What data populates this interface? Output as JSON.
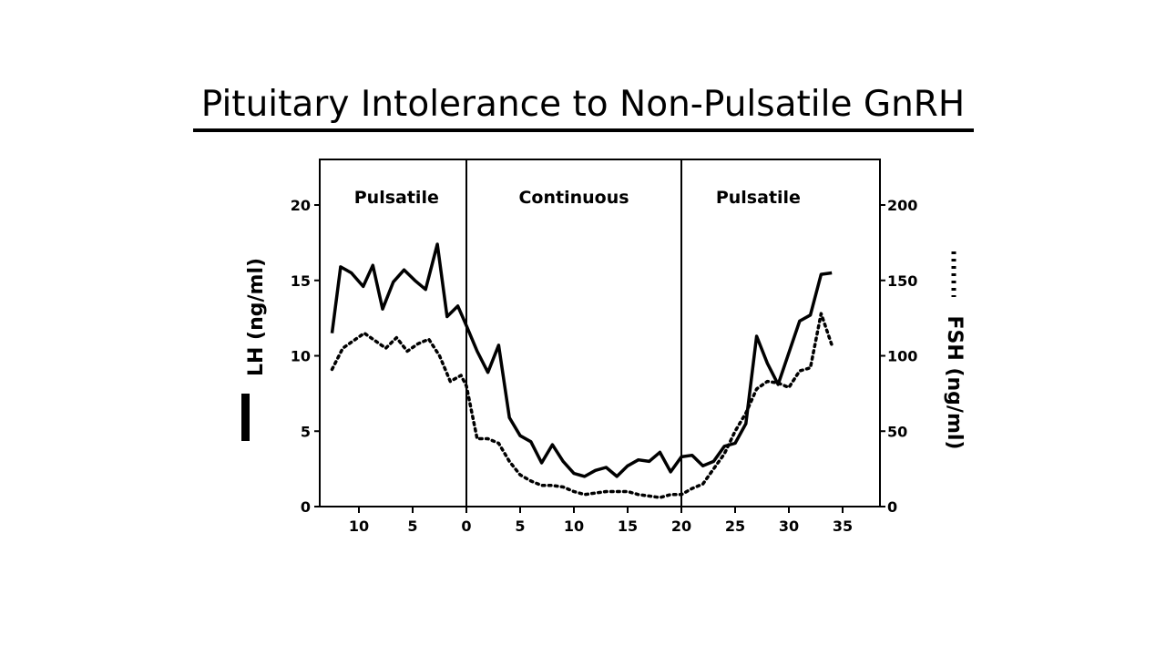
{
  "chart_data": {
    "type": "line",
    "title": "Pituitary Intolerance to Non-Pulsatile GnRH",
    "phases": [
      {
        "label": "Pulsatile",
        "x_start": -13,
        "x_end": 0
      },
      {
        "label": "Continuous",
        "x_start": 0,
        "x_end": 20
      },
      {
        "label": "Pulsatile",
        "x_start": 20,
        "x_end": 36
      }
    ],
    "x_ticks": [
      {
        "value": -10,
        "label": "10"
      },
      {
        "value": -5,
        "label": "5"
      },
      {
        "value": 0,
        "label": "0"
      },
      {
        "value": 5,
        "label": "5"
      },
      {
        "value": 10,
        "label": "10"
      },
      {
        "value": 15,
        "label": "15"
      },
      {
        "value": 20,
        "label": "20"
      },
      {
        "value": 25,
        "label": "25"
      },
      {
        "value": 30,
        "label": "30"
      },
      {
        "value": 35,
        "label": "35"
      }
    ],
    "xlim": [
      -13,
      38
    ],
    "y_left": {
      "label": "LH (ng/ml)",
      "lim": [
        0,
        23
      ],
      "ticks": [
        0,
        5,
        10,
        15,
        20
      ]
    },
    "y_right": {
      "label": "FSH (ng/ml)",
      "lim": [
        0,
        230
      ],
      "ticks": [
        0,
        50,
        100,
        150,
        200
      ]
    },
    "series": [
      {
        "name": "LH (ng/ml)",
        "axis": "left",
        "style": "solid",
        "x": [
          -12.5,
          -11.7,
          -10.7,
          -9.6,
          -8.7,
          -7.8,
          -6.8,
          -5.8,
          -4.8,
          -3.8,
          -2.7,
          -1.8,
          -0.8,
          0,
          1,
          2,
          3,
          4,
          5,
          6,
          7,
          8,
          9,
          10,
          11,
          12,
          13,
          14,
          15,
          16,
          17,
          18,
          19,
          20,
          21,
          22,
          23,
          24,
          25,
          26,
          27,
          28,
          29,
          30,
          31,
          32,
          33,
          34
        ],
        "y": [
          11.5,
          15.9,
          15.5,
          14.6,
          16.0,
          13.1,
          14.9,
          15.7,
          15.0,
          14.4,
          17.4,
          12.6,
          13.3,
          12.0,
          10.3,
          8.9,
          10.7,
          5.9,
          4.7,
          4.3,
          2.9,
          4.1,
          3.0,
          2.2,
          2.0,
          2.4,
          2.6,
          2.0,
          2.7,
          3.1,
          3.0,
          3.6,
          2.3,
          3.3,
          3.4,
          2.7,
          3.0,
          4.0,
          4.2,
          5.5,
          11.3,
          9.5,
          8.1,
          10.2,
          12.3,
          12.7,
          15.4,
          15.5
        ]
      },
      {
        "name": "FSH (ng/ml)",
        "axis": "right",
        "style": "dotted",
        "x": [
          -12.5,
          -11.5,
          -10.5,
          -9.5,
          -8.5,
          -7.5,
          -6.5,
          -5.5,
          -4.5,
          -3.5,
          -2.5,
          -1.5,
          -0.5,
          0,
          1,
          2,
          3,
          4,
          5,
          6,
          7,
          8,
          9,
          10,
          11,
          12,
          13,
          14,
          15,
          16,
          17,
          18,
          19,
          20,
          21,
          22,
          23,
          24,
          25,
          26,
          27,
          28,
          29,
          30,
          31,
          32,
          33,
          34
        ],
        "y": [
          91,
          105,
          110,
          115,
          110,
          105,
          112,
          103,
          108,
          111,
          100,
          83,
          87,
          80,
          45,
          45,
          42,
          30,
          21,
          17,
          14,
          14,
          13,
          10,
          8,
          9,
          10,
          10,
          10,
          8,
          7,
          6,
          8,
          8,
          12,
          15,
          25,
          35,
          50,
          62,
          78,
          83,
          82,
          79,
          90,
          92,
          128,
          107
        ]
      }
    ]
  }
}
